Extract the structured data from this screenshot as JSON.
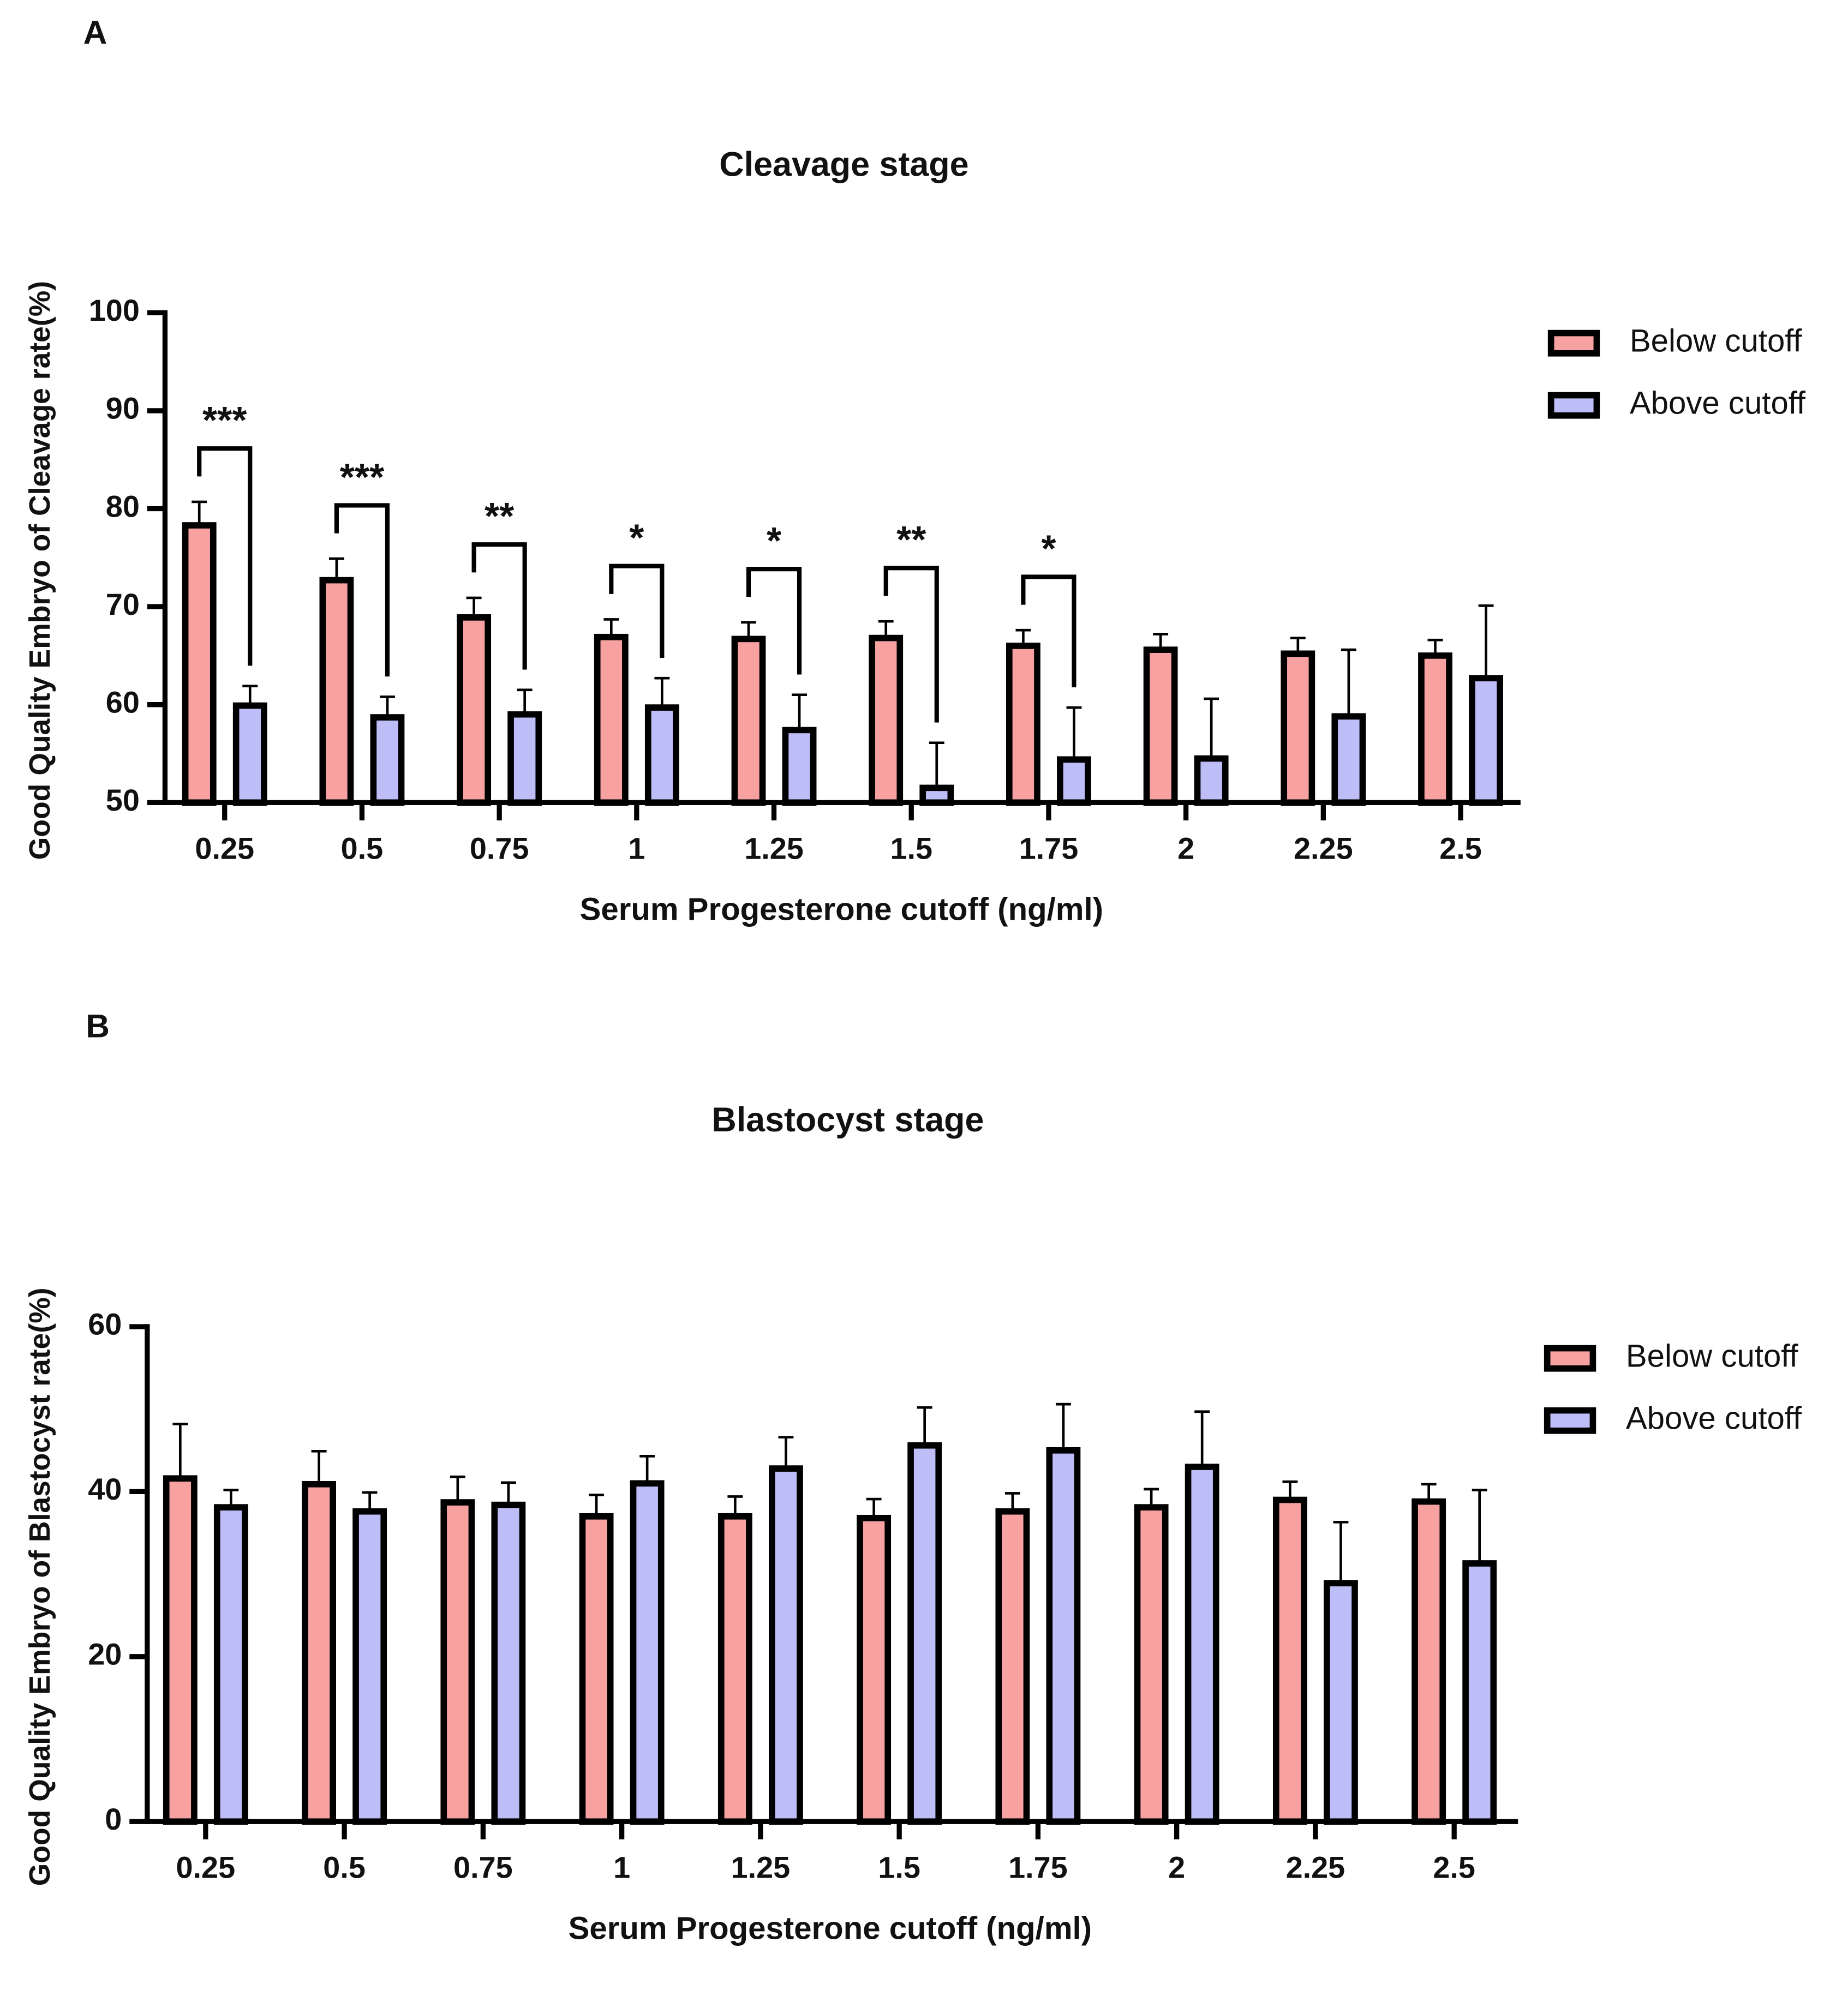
{
  "chart_data": [
    {
      "type": "bar",
      "panel_label": "A",
      "title": "Cleavage stage",
      "x_label": "Serum Progesterone cutoff (ng/ml)",
      "y_label": "Good Quality Embryo of Cleavage rate(%)",
      "categories": [
        "0.25",
        "0.5",
        "0.75",
        "1",
        "1.25",
        "1.5",
        "1.75",
        "2",
        "2.25",
        "2.5"
      ],
      "series": [
        {
          "name": "Below cutoff",
          "color": "#f7a1a1",
          "values": [
            78.3,
            72.7,
            68.9,
            66.9,
            66.7,
            66.8,
            66.0,
            65.6,
            65.2,
            65.0
          ],
          "errors": [
            2.4,
            2.2,
            2.0,
            1.8,
            1.7,
            1.7,
            1.6,
            1.6,
            1.6,
            1.6
          ]
        },
        {
          "name": "Above cutoff",
          "color": "#bdbdf7",
          "values": [
            59.9,
            58.7,
            59.0,
            59.7,
            57.4,
            51.5,
            54.4,
            54.5,
            58.8,
            62.7
          ],
          "errors": [
            2.0,
            2.1,
            2.5,
            3.0,
            3.6,
            4.6,
            5.3,
            6.1,
            6.8,
            7.4
          ]
        }
      ],
      "significance": [
        "***",
        "***",
        "**",
        "*",
        "*",
        "**",
        "*",
        null,
        null,
        null
      ],
      "ylim": [
        50,
        100
      ],
      "yticks": [
        50,
        60,
        70,
        80,
        90,
        100
      ],
      "grid": false,
      "legend": "right"
    },
    {
      "type": "bar",
      "panel_label": "B",
      "title": "Blastocyst stage",
      "x_label": "Serum Progesterone cutoff (ng/ml)",
      "y_label": "Good Quality Embryo of Blastocyst rate(%)",
      "categories": [
        "0.25",
        "0.5",
        "0.75",
        "1",
        "1.25",
        "1.5",
        "1.75",
        "2",
        "2.25",
        "2.5"
      ],
      "series": [
        {
          "name": "Below cutoff",
          "color": "#f7a1a1",
          "values": [
            41.6,
            40.9,
            38.7,
            37.0,
            37.0,
            36.8,
            37.6,
            38.1,
            39.0,
            38.8
          ],
          "errors": [
            6.6,
            4.0,
            3.1,
            2.6,
            2.4,
            2.3,
            2.2,
            2.2,
            2.2,
            2.1
          ]
        },
        {
          "name": "Above cutoff",
          "color": "#bdbdf7",
          "values": [
            38.1,
            37.6,
            38.4,
            41.0,
            42.8,
            45.6,
            45.0,
            43.0,
            28.9,
            31.3
          ],
          "errors": [
            2.1,
            2.3,
            2.7,
            3.3,
            3.8,
            4.6,
            5.6,
            6.7,
            7.4,
            8.9
          ]
        }
      ],
      "ylim": [
        0,
        60
      ],
      "yticks": [
        0,
        20,
        40,
        60
      ],
      "grid": false,
      "legend": "right"
    }
  ]
}
